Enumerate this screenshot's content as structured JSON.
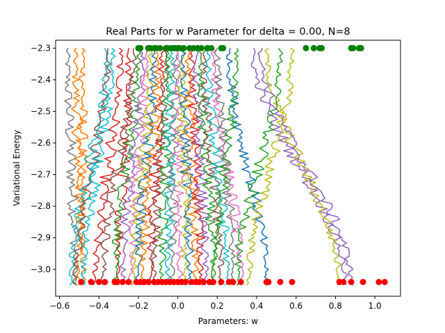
{
  "chart_data": {
    "type": "line",
    "title": "Real Parts for w Parameter for delta = 0.00, N=8",
    "xlabel": "Parameters: w",
    "ylabel": "Variational Energy",
    "xlim": [
      -0.62,
      1.13
    ],
    "ylim": [
      -3.085,
      -2.275
    ],
    "xticks": [
      -0.6,
      -0.4,
      -0.2,
      0.0,
      0.2,
      0.4,
      0.6,
      0.8,
      1.0
    ],
    "xtick_labels": [
      "−0.6",
      "−0.4",
      "−0.2",
      "0.0",
      "0.2",
      "0.4",
      "0.6",
      "0.8",
      "1.0"
    ],
    "yticks": [
      -2.3,
      -2.4,
      -2.5,
      -2.6,
      -2.7,
      -2.8,
      -2.9,
      -3.0
    ],
    "ytick_labels": [
      "−2.3",
      "−2.4",
      "−2.5",
      "−2.6",
      "−2.7",
      "−2.8",
      "−2.9",
      "−3.0"
    ],
    "grid": false,
    "legend": "none",
    "y_top": -2.3,
    "y_bottom": -3.05,
    "palette": [
      "#1f77b4",
      "#ff7f0e",
      "#2ca02c",
      "#d62728",
      "#9467bd",
      "#8c564b",
      "#e377c2",
      "#7f7f7f",
      "#bcbd22",
      "#17becf"
    ],
    "series": [
      {
        "color": "#7f7f7f",
        "x_top": -0.56,
        "x_bottom": -0.52
      },
      {
        "color": "#ff7f0e",
        "x_top": -0.52,
        "x_bottom": -0.48
      },
      {
        "color": "#ff7f0e",
        "x_top": -0.48,
        "x_bottom": -0.5
      },
      {
        "color": "#17becf",
        "x_top": -0.36,
        "x_bottom": -0.54
      },
      {
        "color": "#8c564b",
        "x_top": -0.35,
        "x_bottom": -0.52
      },
      {
        "color": "#17becf",
        "x_top": -0.33,
        "x_bottom": -0.48
      },
      {
        "color": "#d62728",
        "x_top": -0.29,
        "x_bottom": -0.42
      },
      {
        "color": "#d62728",
        "x_top": -0.25,
        "x_bottom": -0.3
      },
      {
        "color": "#8c564b",
        "x_top": -0.22,
        "x_bottom": -0.38
      },
      {
        "color": "#2ca02c",
        "x_top": -0.2,
        "x_bottom": -0.32
      },
      {
        "color": "#9467bd",
        "x_top": -0.18,
        "x_bottom": -0.28
      },
      {
        "color": "#e377c2",
        "x_top": -0.16,
        "x_bottom": -0.24
      },
      {
        "color": "#bcbd22",
        "x_top": -0.14,
        "x_bottom": -0.22
      },
      {
        "color": "#1f77b4",
        "x_top": -0.12,
        "x_bottom": -0.2
      },
      {
        "color": "#ff7f0e",
        "x_top": -0.1,
        "x_bottom": -0.18
      },
      {
        "color": "#d62728",
        "x_top": -0.08,
        "x_bottom": -0.14
      },
      {
        "color": "#8c564b",
        "x_top": -0.06,
        "x_bottom": -0.12
      },
      {
        "color": "#2ca02c",
        "x_top": -0.05,
        "x_bottom": -0.08
      },
      {
        "color": "#17becf",
        "x_top": -0.03,
        "x_bottom": -0.05
      },
      {
        "color": "#7f7f7f",
        "x_top": -0.01,
        "x_bottom": -0.03
      },
      {
        "color": "#e377c2",
        "x_top": 0.0,
        "x_bottom": 0.01
      },
      {
        "color": "#bcbd22",
        "x_top": 0.02,
        "x_bottom": 0.04
      },
      {
        "color": "#1f77b4",
        "x_top": 0.03,
        "x_bottom": 0.06
      },
      {
        "color": "#ff7f0e",
        "x_top": 0.05,
        "x_bottom": 0.09
      },
      {
        "color": "#d62728",
        "x_top": 0.07,
        "x_bottom": 0.12
      },
      {
        "color": "#9467bd",
        "x_top": 0.09,
        "x_bottom": 0.14
      },
      {
        "color": "#2ca02c",
        "x_top": 0.11,
        "x_bottom": 0.18
      },
      {
        "color": "#8c564b",
        "x_top": 0.13,
        "x_bottom": 0.22
      },
      {
        "color": "#17becf",
        "x_top": 0.15,
        "x_bottom": 0.25
      },
      {
        "color": "#e377c2",
        "x_top": 0.18,
        "x_bottom": 0.32
      },
      {
        "color": "#7f7f7f",
        "x_top": 0.2,
        "x_bottom": 0.28
      },
      {
        "color": "#1f77b4",
        "x_top": 0.26,
        "x_bottom": 0.45
      },
      {
        "color": "#2ca02c",
        "x_top": 0.3,
        "x_bottom": 0.18
      },
      {
        "color": "#9467bd",
        "x_top": 0.38,
        "x_bottom": 0.85
      },
      {
        "color": "#bcbd22",
        "x_top": 0.45,
        "x_bottom": 0.82
      },
      {
        "color": "#9467bd",
        "x_top": 0.42,
        "x_bottom": 0.88
      },
      {
        "color": "#bcbd22",
        "x_top": 0.58,
        "x_bottom": 0.36
      },
      {
        "color": "#2ca02c",
        "x_top": 0.52,
        "x_bottom": 0.3
      }
    ],
    "green_markers": {
      "y": -2.3,
      "x": [
        -0.2,
        -0.19,
        -0.15,
        -0.14,
        -0.12,
        -0.11,
        -0.09,
        -0.06,
        -0.05,
        -0.03,
        -0.02,
        -0.01,
        0.0,
        0.01,
        0.03,
        0.06,
        0.08,
        0.1,
        0.12,
        0.15,
        0.17,
        0.22,
        0.23,
        0.65,
        0.69,
        0.72,
        0.73,
        0.88,
        0.89,
        0.92,
        0.93
      ]
    },
    "red_markers": {
      "y": -3.04,
      "x": [
        -0.49,
        -0.44,
        -0.4,
        -0.37,
        -0.32,
        -0.31,
        -0.28,
        -0.25,
        -0.21,
        -0.19,
        -0.17,
        -0.15,
        -0.12,
        -0.1,
        -0.08,
        -0.06,
        -0.04,
        -0.02,
        0.0,
        0.02,
        0.04,
        0.07,
        0.09,
        0.11,
        0.13,
        0.16,
        0.18,
        0.22,
        0.26,
        0.28,
        0.32,
        0.45,
        0.46,
        0.52,
        0.58,
        0.82,
        0.84,
        0.88,
        0.94,
        1.02,
        1.05
      ]
    }
  }
}
